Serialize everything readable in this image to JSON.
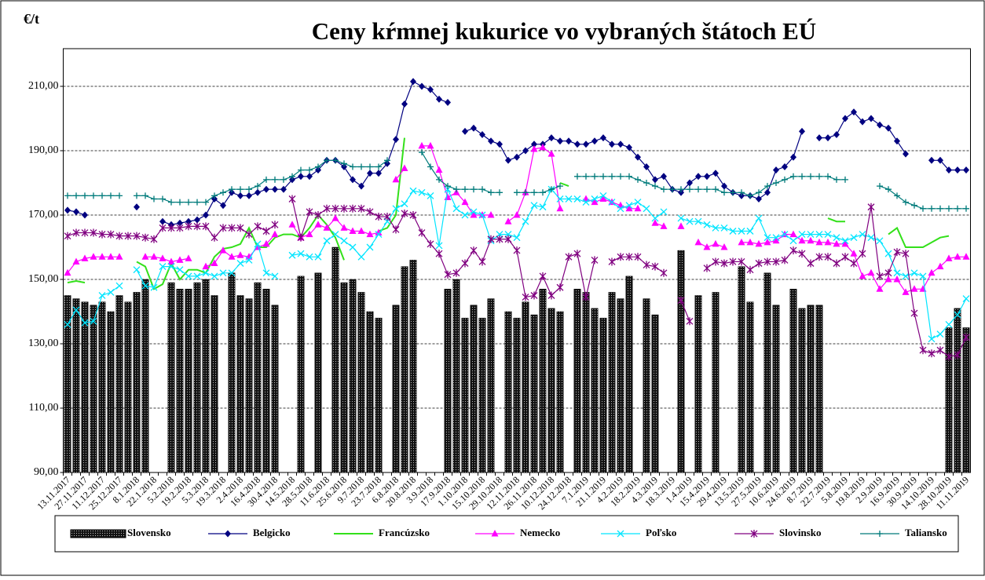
{
  "chart_data": {
    "type": "bar_line",
    "title": "Ceny kŕmnej kukurice vo vybraných štátoch EÚ",
    "y_axis_label": "€/t",
    "categories": [
      "13.11.2017",
      null,
      "27.11.2017",
      null,
      "11.12.2017",
      null,
      "25.12.2017",
      null,
      "8.1.2018",
      null,
      "22.1.2018",
      null,
      "5.2.2018",
      null,
      "19.2.2018",
      null,
      "5.3.2018",
      null,
      "19.3.2018",
      null,
      "2.4.2018",
      null,
      "16.4.2018",
      null,
      "30.4.2018",
      null,
      "14.5.2018",
      null,
      "28.5.2018",
      null,
      "11.6.2018",
      null,
      "25.6.2018",
      null,
      "9.7.2018",
      null,
      "23.7.2018",
      null,
      "6.8.2018",
      null,
      "20.8.2018",
      null,
      "3.9.2018",
      null,
      "17.9.2018",
      null,
      "1.10.2018",
      null,
      "15.10.2018",
      null,
      "29.10.2018",
      null,
      "12.11.2018",
      null,
      "26.11.2018",
      null,
      "10.12.2018",
      null,
      "24.12.2018",
      null,
      "7.1.2019",
      null,
      "21.1.2019",
      null,
      "4.2.2019",
      null,
      "18.2.2019",
      null,
      "4.3.2019",
      null,
      "18.3.2019",
      null,
      "1.4.2019",
      null,
      "15.4.2019",
      null,
      "29.4.2019",
      null,
      "13.5.2019",
      null,
      "27.5.2019",
      null,
      "10.6.2019",
      null,
      "24.6.2019",
      null,
      "8.7.2019",
      null,
      "22.7.2019",
      null,
      "5.8.2019",
      null,
      "19.8.2019",
      null,
      "2.9.2019",
      null,
      "16.9.2019",
      null,
      "30.9.2019",
      null,
      "14.10.2019",
      null,
      "28.10.2019",
      null,
      "11.11.2019"
    ],
    "ylim": [
      90,
      220
    ],
    "yticks": [
      {
        "value": 90,
        "label": "90,00"
      },
      {
        "value": 110,
        "label": "110,00"
      },
      {
        "value": 130,
        "label": "130,00"
      },
      {
        "value": 150,
        "label": "150,00"
      },
      {
        "value": 170,
        "label": "170,00"
      },
      {
        "value": 190,
        "label": "190,00"
      },
      {
        "value": 210,
        "label": "210,00"
      }
    ],
    "grid": true,
    "series": [
      {
        "name": "Slovensko",
        "kind": "bar",
        "color": "#111111",
        "values": [
          145,
          144,
          143,
          142,
          143,
          140,
          145,
          143,
          146,
          150,
          null,
          null,
          149,
          147,
          147,
          149,
          150,
          145,
          null,
          152,
          145,
          144,
          149,
          147,
          142,
          null,
          null,
          151,
          null,
          152,
          null,
          160,
          149,
          150,
          146,
          140,
          138,
          null,
          142,
          154,
          156,
          null,
          null,
          null,
          147,
          150,
          138,
          142,
          138,
          144,
          null,
          140,
          138,
          143,
          139,
          147,
          141,
          140,
          null,
          147,
          146,
          141,
          138,
          146,
          144,
          151,
          null,
          144,
          139,
          null,
          null,
          159,
          null,
          145,
          null,
          146,
          null,
          null,
          154,
          143,
          null,
          152,
          142,
          null,
          147,
          141,
          142,
          142,
          null,
          null,
          null,
          null,
          null,
          null,
          null,
          null,
          null,
          null,
          null,
          null,
          null,
          null,
          135,
          141,
          135
        ]
      },
      {
        "name": "Belgicko",
        "kind": "line",
        "marker": "diamond",
        "color": "#000080",
        "values": [
          171.5,
          171,
          170,
          null,
          null,
          null,
          null,
          null,
          172.5,
          null,
          null,
          168,
          167,
          167.5,
          168,
          168.5,
          170,
          175,
          173,
          177,
          176,
          176,
          177,
          178,
          178,
          178,
          181,
          182,
          182,
          184,
          187,
          187,
          185,
          181,
          179,
          183,
          183,
          186,
          193.5,
          204.5,
          211.5,
          210,
          209,
          206,
          205,
          null,
          196,
          197,
          195,
          193,
          192,
          187,
          188,
          190,
          192,
          192,
          194,
          193,
          193,
          192,
          192,
          193,
          194,
          192,
          192,
          191,
          188,
          185,
          181,
          182,
          178,
          177,
          180,
          182,
          182,
          183,
          179,
          177,
          176,
          176,
          175,
          177,
          184,
          185,
          188,
          196,
          null,
          194,
          194,
          195,
          200,
          202,
          199,
          200,
          198,
          197,
          193,
          189,
          null,
          null,
          187,
          187,
          184,
          184,
          184
        ]
      },
      {
        "name": "Francúzsko",
        "kind": "line",
        "marker": "none",
        "color": "#33e01a",
        "values": [
          149,
          149.5,
          149,
          null,
          null,
          null,
          null,
          null,
          155.5,
          154,
          147,
          148.5,
          155,
          150,
          153,
          153,
          152,
          157,
          159.5,
          160,
          161,
          166,
          160,
          160,
          163,
          164,
          164,
          163,
          166,
          170,
          167,
          163,
          156,
          null,
          null,
          null,
          165,
          166,
          170,
          194,
          null,
          null,
          null,
          null,
          null,
          null,
          null,
          null,
          null,
          null,
          null,
          null,
          null,
          null,
          null,
          null,
          null,
          180,
          179,
          null,
          null,
          null,
          null,
          null,
          null,
          null,
          null,
          null,
          null,
          null,
          null,
          null,
          null,
          null,
          null,
          null,
          null,
          null,
          null,
          null,
          null,
          null,
          null,
          null,
          null,
          null,
          null,
          null,
          169,
          168,
          168,
          null,
          null,
          null,
          null,
          164,
          166,
          160,
          160,
          160,
          161.5,
          163,
          163.5,
          null,
          null
        ]
      },
      {
        "name": "Nemecko",
        "kind": "line",
        "marker": "triangle",
        "color": "#ff00ff",
        "values": [
          152,
          155.5,
          156.5,
          157,
          157,
          157,
          157,
          null,
          null,
          157,
          157,
          156.5,
          155.5,
          156,
          156.5,
          null,
          154,
          155,
          159,
          157,
          157.5,
          157,
          160,
          161,
          164,
          null,
          167,
          163,
          164,
          167,
          166,
          169,
          166,
          165,
          165,
          164,
          164.5,
          null,
          181,
          184.5,
          null,
          191.5,
          191.5,
          184,
          175.5,
          177,
          174,
          170,
          170,
          170,
          null,
          168,
          170,
          177,
          190.5,
          191,
          189,
          172,
          null,
          null,
          175,
          174,
          175,
          174,
          173,
          172,
          172,
          null,
          167.5,
          166.5,
          null,
          166.5,
          null,
          161.5,
          160,
          161,
          160,
          null,
          161.5,
          161.5,
          161,
          161.5,
          162,
          164,
          164,
          162,
          162,
          161.5,
          161.5,
          161,
          161,
          158,
          151,
          152,
          147,
          150,
          150,
          146,
          147,
          147,
          152,
          154,
          156.5,
          157,
          157
        ]
      },
      {
        "name": "Poľsko",
        "kind": "line",
        "marker": "x",
        "color": "#00e5ff",
        "values": [
          136,
          140.5,
          136.5,
          137,
          145,
          146,
          148,
          null,
          153,
          148,
          147.5,
          154,
          154,
          153,
          151,
          151,
          152,
          151,
          152,
          152,
          155,
          156,
          161,
          152,
          151,
          null,
          157.5,
          158,
          157,
          157,
          162,
          164,
          162,
          160,
          157,
          160,
          164,
          168,
          172,
          173.5,
          177.5,
          177,
          176,
          160.5,
          178,
          172,
          170,
          171,
          170,
          162,
          164,
          164,
          163,
          168,
          173,
          172.5,
          178,
          175,
          175,
          175,
          174,
          175,
          176,
          174,
          172,
          173,
          174,
          172,
          169,
          171,
          null,
          169,
          168,
          168,
          167,
          166,
          166,
          165,
          165,
          165,
          169,
          163,
          163,
          164,
          162,
          164,
          164,
          164,
          164,
          163,
          162,
          163,
          164,
          163,
          162,
          158,
          152,
          151,
          152,
          151,
          131.5,
          133,
          136,
          139,
          144
        ]
      },
      {
        "name": "Slovinsko",
        "kind": "line",
        "marker": "star",
        "color": "#800080",
        "values": [
          163.5,
          164.5,
          164.5,
          164.5,
          164,
          164,
          163.5,
          163.5,
          163.5,
          163,
          162.5,
          166,
          166,
          166,
          166.5,
          166.5,
          166.5,
          163,
          166,
          166,
          166,
          164,
          166.5,
          165,
          167,
          null,
          175,
          163,
          171,
          170,
          172,
          172,
          172,
          172,
          172,
          171,
          169.5,
          169.5,
          165.5,
          170.5,
          170,
          164.5,
          161,
          158,
          151.5,
          152,
          155,
          159,
          155.5,
          162.5,
          162.5,
          162.5,
          159,
          144.5,
          145,
          151,
          145,
          147.5,
          157,
          158,
          144.5,
          156,
          null,
          155.5,
          157,
          157,
          157,
          154.5,
          154,
          152,
          null,
          143.5,
          137,
          null,
          153.5,
          155.5,
          155,
          155.5,
          155.5,
          153,
          155,
          155.5,
          155.5,
          156,
          159,
          158,
          155,
          157,
          157,
          155,
          157,
          155,
          158,
          172.5,
          151,
          152,
          158.5,
          158,
          139.5,
          128,
          127,
          128,
          126,
          126.5,
          132
        ]
      },
      {
        "name": "Taliansko",
        "kind": "line",
        "marker": "plus",
        "color": "#007b7b",
        "values": [
          176,
          176,
          176,
          176,
          176,
          176,
          176,
          null,
          176,
          176,
          175,
          175,
          174,
          174,
          174,
          174,
          174,
          176,
          177,
          178,
          178,
          178,
          179,
          181,
          181,
          181,
          182,
          184,
          184,
          185,
          187,
          187,
          186,
          185,
          185,
          185,
          185,
          187,
          null,
          null,
          null,
          189.5,
          185,
          181,
          179,
          178,
          178,
          178,
          178,
          177,
          177,
          null,
          177,
          177,
          177,
          177,
          178,
          179,
          null,
          182,
          182,
          182,
          182,
          182,
          182,
          182,
          181,
          180,
          179,
          178,
          178,
          178,
          178,
          178,
          178,
          178,
          177,
          177,
          177,
          176,
          177,
          179,
          180,
          181,
          182,
          182,
          182,
          182,
          182,
          181,
          181,
          null,
          null,
          null,
          179,
          178,
          176,
          174,
          173,
          172,
          172,
          172,
          172,
          172,
          172
        ]
      }
    ]
  }
}
